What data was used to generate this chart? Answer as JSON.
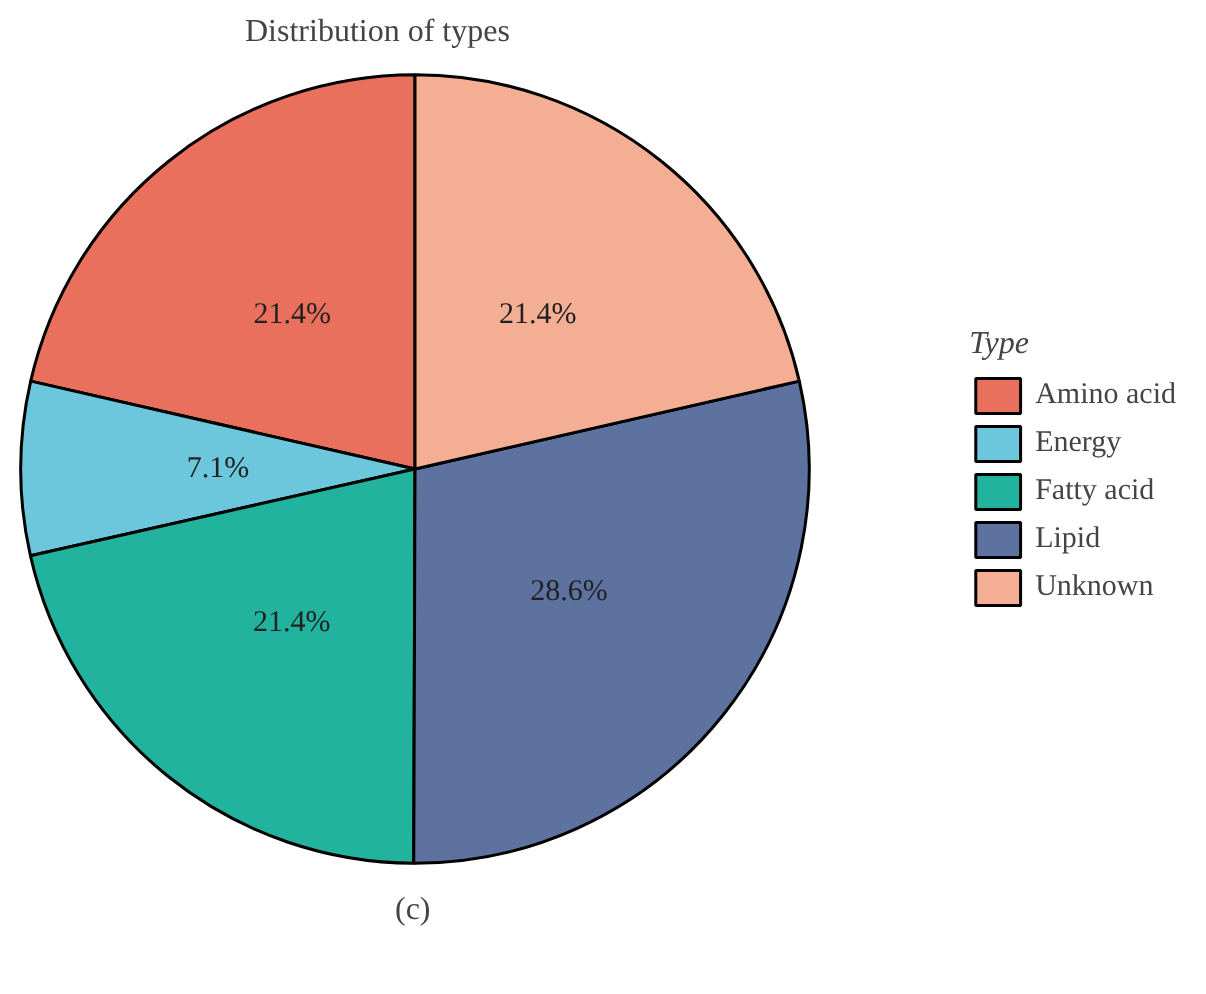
{
  "chart_data": {
    "type": "pie",
    "title": "Distribution of types",
    "legend_title": "Type",
    "categories": [
      "Amino acid",
      "Energy",
      "Fatty acid",
      "Lipid",
      "Unknown"
    ],
    "values": [
      21.4,
      7.1,
      21.4,
      28.6,
      21.4
    ],
    "colors": [
      "#e8705c",
      "#6cc7dd",
      "#22b39f",
      "#5e72a0",
      "#f3ae94"
    ],
    "value_labels": [
      "21.4%",
      "7.1%",
      "21.4%",
      "28.6%",
      "21.4%"
    ],
    "legend": "right",
    "annotations": [
      "(c)"
    ]
  }
}
